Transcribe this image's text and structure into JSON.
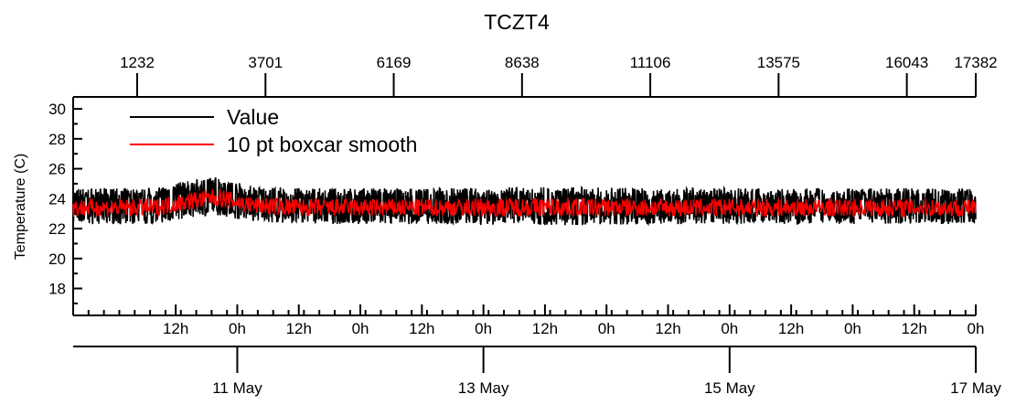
{
  "chart_data": {
    "type": "line",
    "title": "TCZT4",
    "ylabel": "Temperature (C)",
    "xlabel": "",
    "ylim": [
      16.2,
      30.8
    ],
    "yticks": [
      18,
      20,
      22,
      24,
      26,
      28,
      30
    ],
    "time_range": [
      "2024-05-09T16:00",
      "2024-05-17T00:00"
    ],
    "top_axis": {
      "ticks": [
        1232,
        3701,
        6169,
        8638,
        11106,
        13575,
        16043,
        17382
      ],
      "labels": [
        "1232",
        "3701",
        "6169",
        "8638",
        "11106",
        "13575",
        "16043",
        "17382"
      ]
    },
    "hour_axis": {
      "ticks": [
        "2024-05-10T12:00",
        "2024-05-11T00:00",
        "2024-05-11T12:00",
        "2024-05-12T00:00",
        "2024-05-12T12:00",
        "2024-05-13T00:00",
        "2024-05-13T12:00",
        "2024-05-14T00:00",
        "2024-05-14T12:00",
        "2024-05-15T00:00",
        "2024-05-15T12:00",
        "2024-05-16T00:00",
        "2024-05-16T12:00",
        "2024-05-17T00:00"
      ],
      "labels": [
        "12h",
        "0h",
        "12h",
        "0h",
        "12h",
        "0h",
        "12h",
        "0h",
        "12h",
        "0h",
        "12h",
        "0h",
        "12h",
        "0h"
      ]
    },
    "date_axis": {
      "ticks": [
        "2024-05-11",
        "2024-05-13",
        "2024-05-15",
        "2024-05-17"
      ],
      "labels": [
        "11 May",
        "13 May",
        "15 May",
        "17 May"
      ]
    },
    "legend": {
      "placement": "top-left"
    },
    "series": [
      {
        "name": "Value",
        "color": "#000000",
        "style": "noisy band",
        "x": [
          "2024-05-09T16:00",
          "2024-05-10T08:00",
          "2024-05-10T14:00",
          "2024-05-10T20:00",
          "2024-05-11T02:00",
          "2024-05-11T12:00",
          "2024-05-12T12:00",
          "2024-05-13T12:00",
          "2024-05-14T12:00",
          "2024-05-15T12:00",
          "2024-05-16T12:00",
          "2024-05-17T00:00"
        ],
        "min": [
          22.3,
          22.3,
          22.7,
          22.9,
          22.5,
          22.3,
          22.3,
          22.2,
          22.3,
          22.3,
          22.3,
          22.3
        ],
        "max": [
          24.7,
          24.7,
          25.2,
          25.5,
          24.9,
          24.7,
          24.7,
          24.8,
          24.7,
          24.7,
          24.7,
          24.7
        ]
      },
      {
        "name": "10 pt boxcar smooth",
        "color": "#ff0000",
        "style": "smoothed line",
        "x": [
          "2024-05-09T16:00",
          "2024-05-10T08:00",
          "2024-05-10T14:00",
          "2024-05-10T20:00",
          "2024-05-11T02:00",
          "2024-05-11T12:00",
          "2024-05-12T12:00",
          "2024-05-13T12:00",
          "2024-05-14T12:00",
          "2024-05-15T12:00",
          "2024-05-16T12:00",
          "2024-05-17T00:00"
        ],
        "min": [
          22.8,
          22.8,
          23.2,
          23.5,
          23.0,
          22.8,
          22.8,
          22.8,
          22.8,
          22.8,
          22.8,
          22.8
        ],
        "max": [
          24.0,
          24.0,
          24.4,
          24.7,
          24.2,
          24.0,
          24.0,
          24.1,
          24.0,
          24.0,
          24.0,
          24.0
        ]
      }
    ]
  }
}
